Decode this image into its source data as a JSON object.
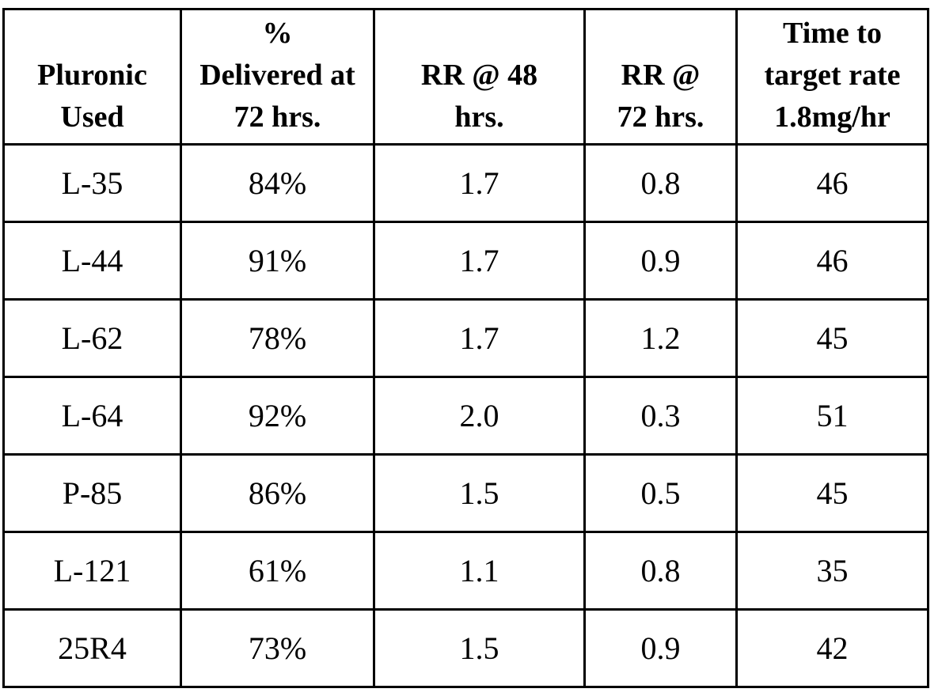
{
  "table": {
    "headers": [
      [
        "Pluronic",
        "Used"
      ],
      [
        "%",
        "Delivered at",
        "72 hrs."
      ],
      [
        "RR @ 48",
        "hrs."
      ],
      [
        "RR  @",
        "72 hrs."
      ],
      [
        "Time to",
        "target rate",
        "1.8mg/hr"
      ]
    ],
    "rows": [
      [
        "L-35",
        "84%",
        "1.7",
        "0.8",
        "46"
      ],
      [
        "L-44",
        "91%",
        "1.7",
        "0.9",
        "46"
      ],
      [
        "L-62",
        "78%",
        "1.7",
        "1.2",
        "45"
      ],
      [
        "L-64",
        "92%",
        "2.0",
        "0.3",
        "51"
      ],
      [
        "P-85",
        "86%",
        "1.5",
        "0.5",
        "45"
      ],
      [
        "L-121",
        "61%",
        "1.1",
        "0.8",
        "35"
      ],
      [
        "25R4",
        "73%",
        "1.5",
        "0.9",
        "42"
      ]
    ]
  }
}
